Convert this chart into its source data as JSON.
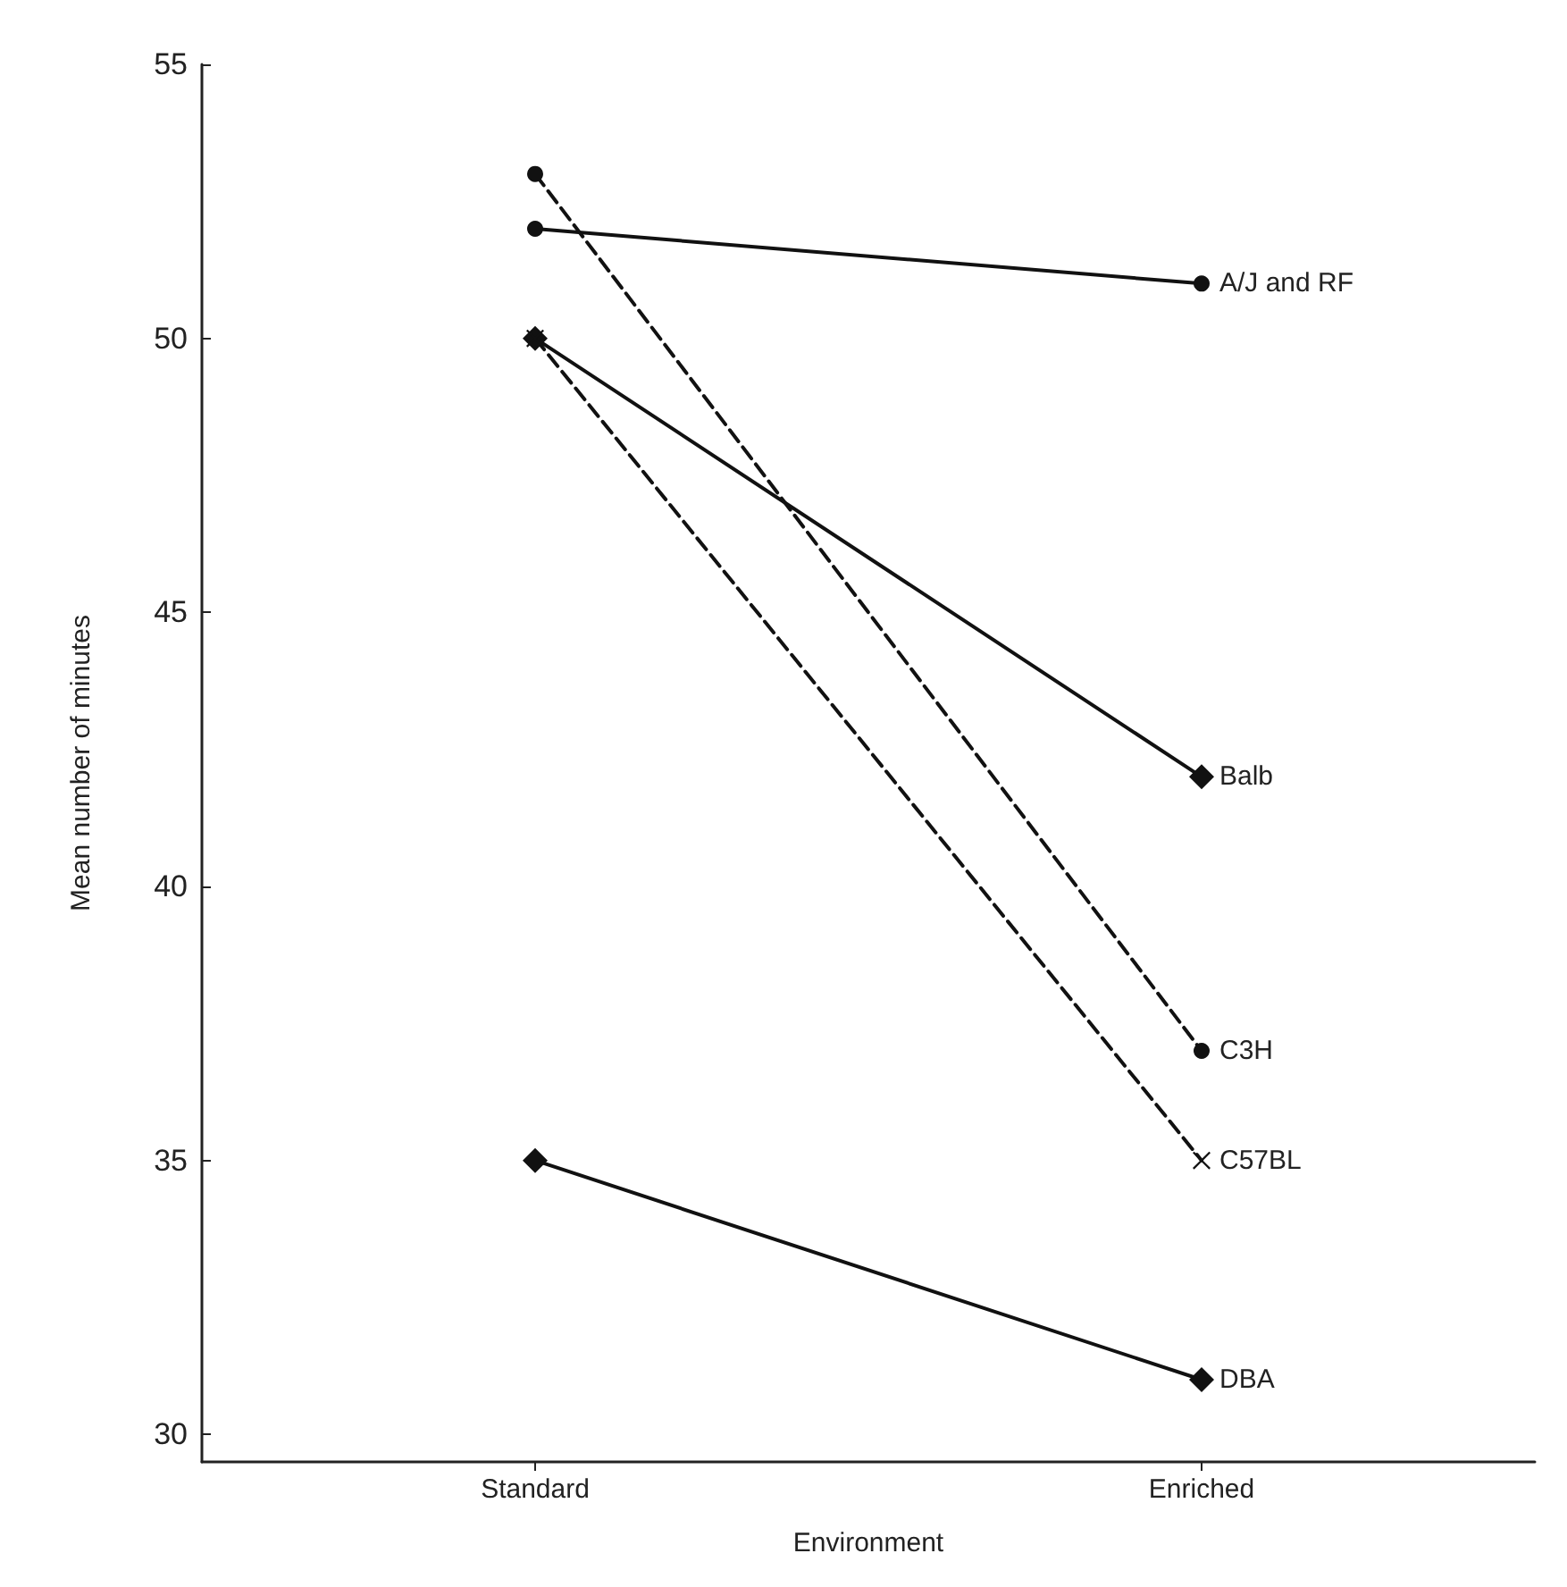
{
  "chart_data": {
    "type": "line",
    "xlabel": "Environment",
    "ylabel": "Mean number of minutes",
    "categories": [
      "Standard",
      "Enriched"
    ],
    "series": [
      {
        "name": "A/J and RF",
        "color": "#111111",
        "values": [
          52,
          51
        ],
        "marker": "circle",
        "line_style": "solid"
      },
      {
        "name": "Balb",
        "color": "#111111",
        "values": [
          50,
          42
        ],
        "marker": "diamond",
        "line_style": "solid"
      },
      {
        "name": "C3H",
        "color": "#111111",
        "values": [
          53,
          37
        ],
        "marker": "circle",
        "line_style": "dashed"
      },
      {
        "name": "C57BL",
        "color": "#111111",
        "values": [
          50,
          35
        ],
        "marker": "cross",
        "line_style": "dashed"
      },
      {
        "name": "DBA",
        "color": "#111111",
        "values": [
          35,
          31
        ],
        "marker": "diamond",
        "line_style": "solid"
      }
    ],
    "ylim": [
      29.5,
      55
    ],
    "yticks": [
      30,
      35,
      40,
      45,
      50,
      55
    ],
    "grid": false,
    "legend": false
  }
}
